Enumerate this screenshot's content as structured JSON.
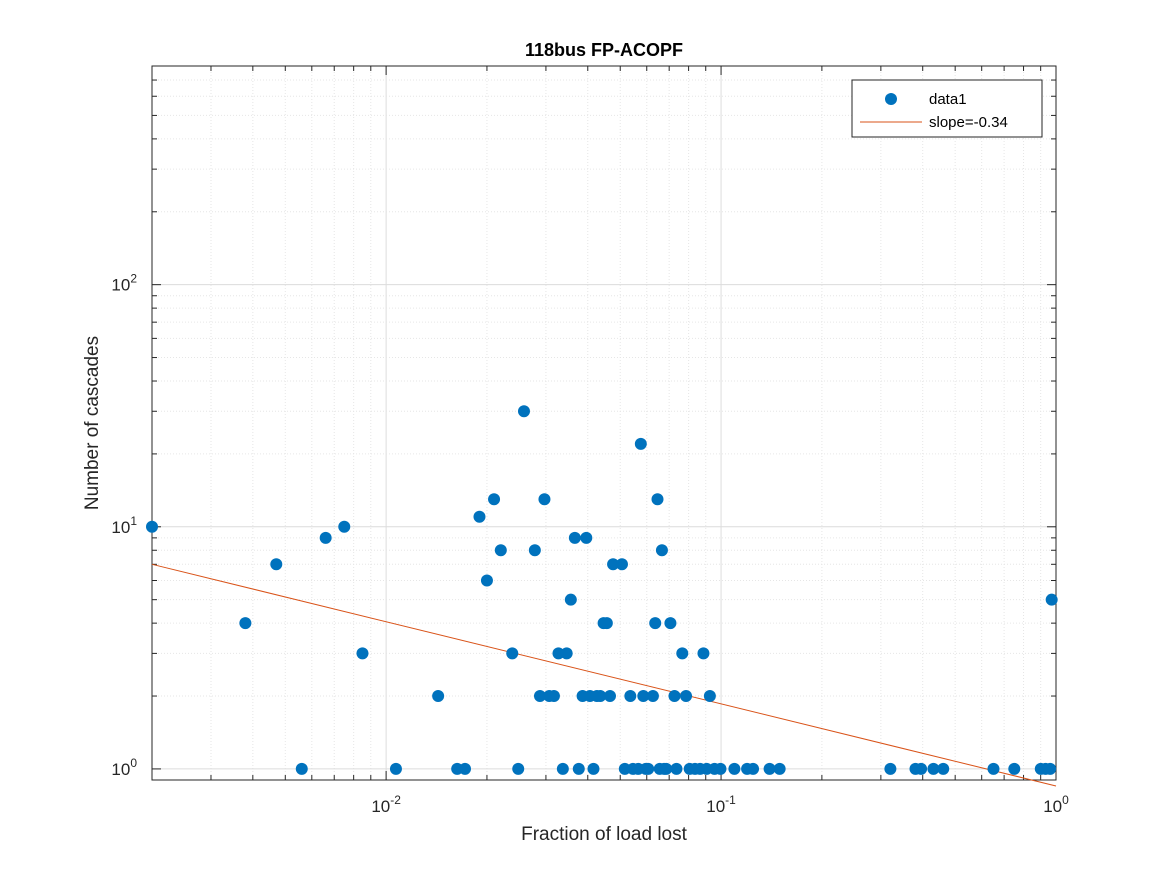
{
  "chart_data": {
    "type": "scatter",
    "title": "118bus FP-ACOPF",
    "xlabel": "Fraction of load lost",
    "ylabel": "Number of cascades",
    "xscale": "log",
    "yscale": "log",
    "xlim": [
      0.002,
      1
    ],
    "ylim": [
      0.9,
      800
    ],
    "grid": "on (major and minor)",
    "legend_position": "top-right",
    "x_ticks": [
      {
        "base": "10",
        "exp": "-2",
        "value": 0.01
      },
      {
        "base": "10",
        "exp": "-1",
        "value": 0.1
      },
      {
        "base": "10",
        "exp": "0",
        "value": 1
      }
    ],
    "y_ticks": [
      {
        "base": "10",
        "exp": "0",
        "value": 1
      },
      {
        "base": "10",
        "exp": "1",
        "value": 10
      },
      {
        "base": "10",
        "exp": "2",
        "value": 100
      }
    ],
    "series": [
      {
        "name": "data1",
        "kind": "markers",
        "color": "#0072BD",
        "points": [
          [
            0.002,
            10
          ],
          [
            0.0038,
            4
          ],
          [
            0.0047,
            7
          ],
          [
            0.0056,
            1
          ],
          [
            0.0066,
            9
          ],
          [
            0.0075,
            10
          ],
          [
            0.0085,
            3
          ],
          [
            0.0107,
            1
          ],
          [
            0.0143,
            2
          ],
          [
            0.0163,
            1
          ],
          [
            0.0172,
            1
          ],
          [
            0.019,
            11
          ],
          [
            0.02,
            6
          ],
          [
            0.021,
            13
          ],
          [
            0.022,
            8
          ],
          [
            0.0238,
            3
          ],
          [
            0.0248,
            1
          ],
          [
            0.0258,
            30
          ],
          [
            0.0278,
            8
          ],
          [
            0.0288,
            2
          ],
          [
            0.0297,
            13
          ],
          [
            0.0307,
            2
          ],
          [
            0.0317,
            2
          ],
          [
            0.0327,
            3
          ],
          [
            0.0337,
            1
          ],
          [
            0.0346,
            3
          ],
          [
            0.0356,
            5
          ],
          [
            0.0366,
            9
          ],
          [
            0.0376,
            1
          ],
          [
            0.0386,
            2
          ],
          [
            0.0396,
            9
          ],
          [
            0.0406,
            2
          ],
          [
            0.0416,
            1
          ],
          [
            0.0426,
            2
          ],
          [
            0.0436,
            2
          ],
          [
            0.0446,
            4
          ],
          [
            0.0456,
            4
          ],
          [
            0.0466,
            2
          ],
          [
            0.0476,
            7
          ],
          [
            0.0506,
            7
          ],
          [
            0.0516,
            1
          ],
          [
            0.0536,
            2
          ],
          [
            0.0546,
            1
          ],
          [
            0.0566,
            1
          ],
          [
            0.0576,
            22
          ],
          [
            0.0586,
            2
          ],
          [
            0.0596,
            1
          ],
          [
            0.0606,
            1
          ],
          [
            0.0626,
            2
          ],
          [
            0.0636,
            4
          ],
          [
            0.0646,
            13
          ],
          [
            0.0656,
            1
          ],
          [
            0.0666,
            8
          ],
          [
            0.0676,
            1
          ],
          [
            0.0686,
            1
          ],
          [
            0.0706,
            4
          ],
          [
            0.0726,
            2
          ],
          [
            0.0736,
            1
          ],
          [
            0.0766,
            3
          ],
          [
            0.0786,
            2
          ],
          [
            0.0806,
            1
          ],
          [
            0.0836,
            1
          ],
          [
            0.0866,
            1
          ],
          [
            0.0886,
            3
          ],
          [
            0.0906,
            1
          ],
          [
            0.0926,
            2
          ],
          [
            0.0956,
            1
          ],
          [
            0.0996,
            1
          ],
          [
            0.1096,
            1
          ],
          [
            0.1196,
            1
          ],
          [
            0.1246,
            1
          ],
          [
            0.1396,
            1
          ],
          [
            0.1496,
            1
          ],
          [
            0.3203,
            1
          ],
          [
            0.3806,
            1
          ],
          [
            0.3956,
            1
          ],
          [
            0.4306,
            1
          ],
          [
            0.4606,
            1
          ],
          [
            0.6507,
            1
          ],
          [
            0.7507,
            1
          ],
          [
            0.9007,
            1
          ],
          [
            0.9307,
            1
          ],
          [
            0.9607,
            1
          ],
          [
            0.9707,
            5
          ]
        ]
      },
      {
        "name": "slope=-0.34",
        "kind": "line",
        "color": "#D95319",
        "slope": -0.34,
        "points": [
          [
            0.002,
            7.0
          ],
          [
            1,
            0.85
          ]
        ]
      }
    ]
  }
}
